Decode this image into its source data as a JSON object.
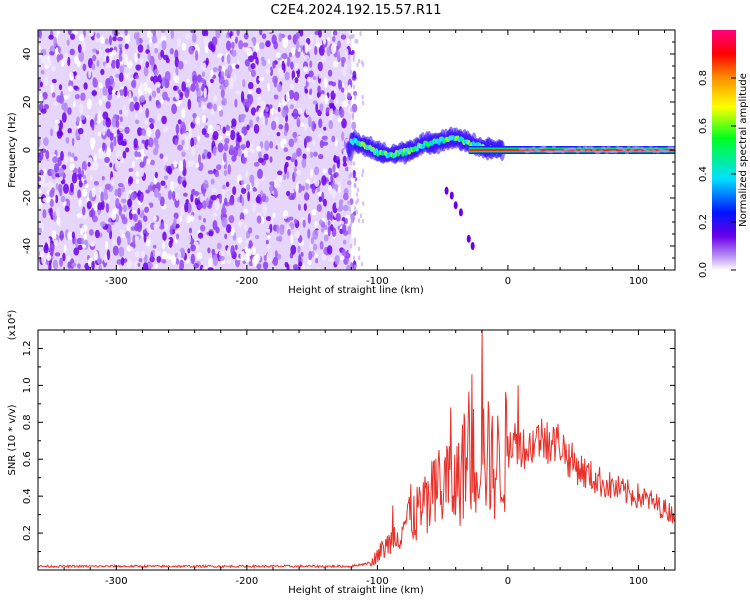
{
  "chart_data": [
    {
      "type": "heatmap",
      "title": "C2E4.2024.192.15.57.R11",
      "xlabel": "Height of straight line (km)",
      "ylabel": "Frequency (Hz)",
      "xlim": [
        -360,
        128
      ],
      "ylim": [
        -50,
        50
      ],
      "xticks": [
        -300,
        -200,
        -100,
        0,
        100
      ],
      "yticks": [
        -40,
        -20,
        0,
        20,
        40
      ],
      "noise_region_x": [
        -360,
        -120
      ],
      "signal_track": [
        {
          "x": -120,
          "y": 4
        },
        {
          "x": -110,
          "y": 2
        },
        {
          "x": -100,
          "y": -1
        },
        {
          "x": -90,
          "y": -2
        },
        {
          "x": -80,
          "y": -1
        },
        {
          "x": -70,
          "y": 1
        },
        {
          "x": -60,
          "y": 3
        },
        {
          "x": -50,
          "y": 4
        },
        {
          "x": -40,
          "y": 5
        },
        {
          "x": -30,
          "y": 3
        },
        {
          "x": -20,
          "y": 1
        },
        {
          "x": -10,
          "y": 0
        },
        {
          "x": 0,
          "y": 0
        },
        {
          "x": 50,
          "y": 0
        },
        {
          "x": 100,
          "y": 0
        },
        {
          "x": 128,
          "y": 0
        }
      ],
      "debris_trail": [
        {
          "x": -47,
          "y": -17
        },
        {
          "x": -43,
          "y": -19
        },
        {
          "x": -40,
          "y": -23
        },
        {
          "x": -36,
          "y": -26
        },
        {
          "x": -30,
          "y": -37
        },
        {
          "x": -27,
          "y": -40
        }
      ],
      "colorbar": {
        "label": "Normalized spectral amplitude",
        "range": [
          0,
          1
        ],
        "ticks": [
          0.0,
          0.2,
          0.4,
          0.6,
          0.8
        ],
        "tick_labels": [
          "0.0",
          "0.2",
          "0.4",
          "0.6",
          "0.8"
        ]
      }
    },
    {
      "type": "line",
      "xlabel": "Height of straight line (km)",
      "ylabel": "SNR (10 * v/v)",
      "yunit": "(x10⁴)",
      "xlim": [
        -360,
        128
      ],
      "ylim": [
        0,
        1.3
      ],
      "xticks": [
        -300,
        -200,
        -100,
        0,
        100
      ],
      "yticks": [
        0.2,
        0.4,
        0.6,
        0.8,
        1.0,
        1.2
      ],
      "ytick_labels": [
        "0.2",
        "0.4",
        "0.6",
        "0.8",
        "1.0",
        "1.2"
      ],
      "series": [
        {
          "color": "#e8312a",
          "x": [
            -360,
            -300,
            -200,
            -120,
            -105,
            -100,
            -95,
            -90,
            -85,
            -80,
            -75,
            -70,
            -65,
            -60,
            -55,
            -50,
            -45,
            -40,
            -35,
            -30,
            -25,
            -20,
            -15,
            -10,
            -5,
            0,
            5,
            10,
            15,
            20,
            25,
            30,
            35,
            40,
            45,
            50,
            55,
            60,
            70,
            80,
            90,
            100,
            110,
            120,
            128
          ],
          "y": [
            0.02,
            0.02,
            0.02,
            0.02,
            0.04,
            0.08,
            0.12,
            0.15,
            0.2,
            0.25,
            0.3,
            0.3,
            0.32,
            0.35,
            0.4,
            0.45,
            0.5,
            0.45,
            0.55,
            0.6,
            0.6,
            0.65,
            0.6,
            0.55,
            0.6,
            0.65,
            0.7,
            0.68,
            0.65,
            0.7,
            0.72,
            0.7,
            0.68,
            0.7,
            0.62,
            0.58,
            0.55,
            0.52,
            0.48,
            0.45,
            0.42,
            0.4,
            0.37,
            0.33,
            0.3
          ]
        }
      ],
      "peaks": [
        {
          "x": -88,
          "y": 0.35
        },
        {
          "x": -68,
          "y": 0.45
        },
        {
          "x": -53,
          "y": 0.65
        },
        {
          "x": -44,
          "y": 0.88
        },
        {
          "x": -33,
          "y": 0.8
        },
        {
          "x": -20,
          "y": 1.3
        },
        {
          "x": 8,
          "y": 1.0
        },
        {
          "x": 30,
          "y": 0.8
        }
      ]
    }
  ]
}
